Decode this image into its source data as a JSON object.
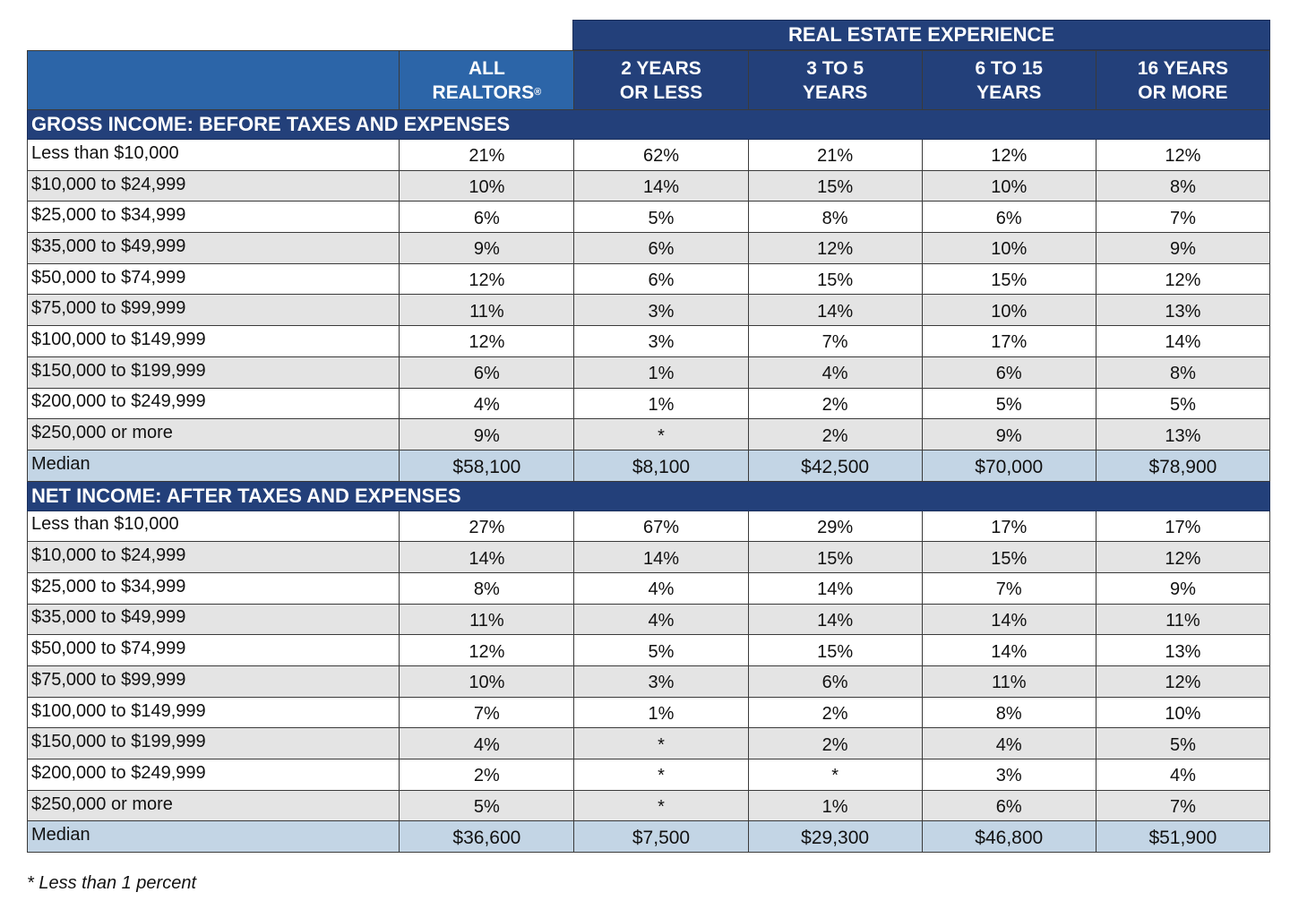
{
  "header": {
    "super_label": "REAL ESTATE EXPERIENCE",
    "columns": [
      {
        "line1": "ALL",
        "line2": "REALTORS",
        "reg": "®"
      },
      {
        "line1": "2 YEARS",
        "line2": "OR LESS"
      },
      {
        "line1": "3 TO 5",
        "line2": "YEARS"
      },
      {
        "line1": "6 TO 15",
        "line2": "YEARS"
      },
      {
        "line1": "16 YEARS",
        "line2": "OR MORE"
      }
    ]
  },
  "sections": [
    {
      "title": "GROSS INCOME: BEFORE TAXES AND EXPENSES",
      "rows": [
        {
          "label": "Less than $10,000",
          "values": [
            "21%",
            "62%",
            "21%",
            "12%",
            "12%"
          ]
        },
        {
          "label": "$10,000 to $24,999",
          "values": [
            "10%",
            "14%",
            "15%",
            "10%",
            "8%"
          ]
        },
        {
          "label": "$25,000 to $34,999",
          "values": [
            "6%",
            "5%",
            "8%",
            "6%",
            "7%"
          ]
        },
        {
          "label": "$35,000 to $49,999",
          "values": [
            "9%",
            "6%",
            "12%",
            "10%",
            "9%"
          ]
        },
        {
          "label": "$50,000 to $74,999",
          "values": [
            "12%",
            "6%",
            "15%",
            "15%",
            "12%"
          ]
        },
        {
          "label": "$75,000 to $99,999",
          "values": [
            "11%",
            "3%",
            "14%",
            "10%",
            "13%"
          ]
        },
        {
          "label": "$100,000 to $149,999",
          "values": [
            "12%",
            "3%",
            "7%",
            "17%",
            "14%"
          ]
        },
        {
          "label": "$150,000 to $199,999",
          "values": [
            "6%",
            "1%",
            "4%",
            "6%",
            "8%"
          ]
        },
        {
          "label": "$200,000 to $249,999",
          "values": [
            "4%",
            "1%",
            "2%",
            "5%",
            "5%"
          ]
        },
        {
          "label": "$250,000 or more",
          "values": [
            "9%",
            "*",
            "2%",
            "9%",
            "13%"
          ]
        }
      ],
      "median": {
        "label": "Median",
        "values": [
          "$58,100",
          "$8,100",
          "$42,500",
          "$70,000",
          "$78,900"
        ]
      }
    },
    {
      "title": "NET INCOME: AFTER TAXES AND EXPENSES",
      "rows": [
        {
          "label": "Less than $10,000",
          "values": [
            "27%",
            "67%",
            "29%",
            "17%",
            "17%"
          ]
        },
        {
          "label": "$10,000 to $24,999",
          "values": [
            "14%",
            "14%",
            "15%",
            "15%",
            "12%"
          ]
        },
        {
          "label": "$25,000 to $34,999",
          "values": [
            "8%",
            "4%",
            "14%",
            "7%",
            "9%"
          ]
        },
        {
          "label": "$35,000 to $49,999",
          "values": [
            "11%",
            "4%",
            "14%",
            "14%",
            "11%"
          ]
        },
        {
          "label": "$50,000 to $74,999",
          "values": [
            "12%",
            "5%",
            "15%",
            "14%",
            "13%"
          ]
        },
        {
          "label": "$75,000 to $99,999",
          "values": [
            "10%",
            "3%",
            "6%",
            "11%",
            "12%"
          ]
        },
        {
          "label": "$100,000 to $149,999",
          "values": [
            "7%",
            "1%",
            "2%",
            "8%",
            "10%"
          ]
        },
        {
          "label": "$150,000 to $199,999",
          "values": [
            "4%",
            "*",
            "2%",
            "4%",
            "5%"
          ]
        },
        {
          "label": "$200,000 to $249,999",
          "values": [
            "2%",
            "*",
            "*",
            "3%",
            "4%"
          ]
        },
        {
          "label": "$250,000 or more",
          "values": [
            "5%",
            "*",
            "1%",
            "6%",
            "7%"
          ]
        }
      ],
      "median": {
        "label": "Median",
        "values": [
          "$36,600",
          "$7,500",
          "$29,300",
          "$46,800",
          "$51,900"
        ]
      }
    }
  ],
  "footnote": "* Less than 1 percent",
  "colors": {
    "header_dark": "#23407a",
    "header_light": "#2c65a8",
    "row_alt": "#e4e4e4",
    "median_bg": "#c3d5e5"
  }
}
